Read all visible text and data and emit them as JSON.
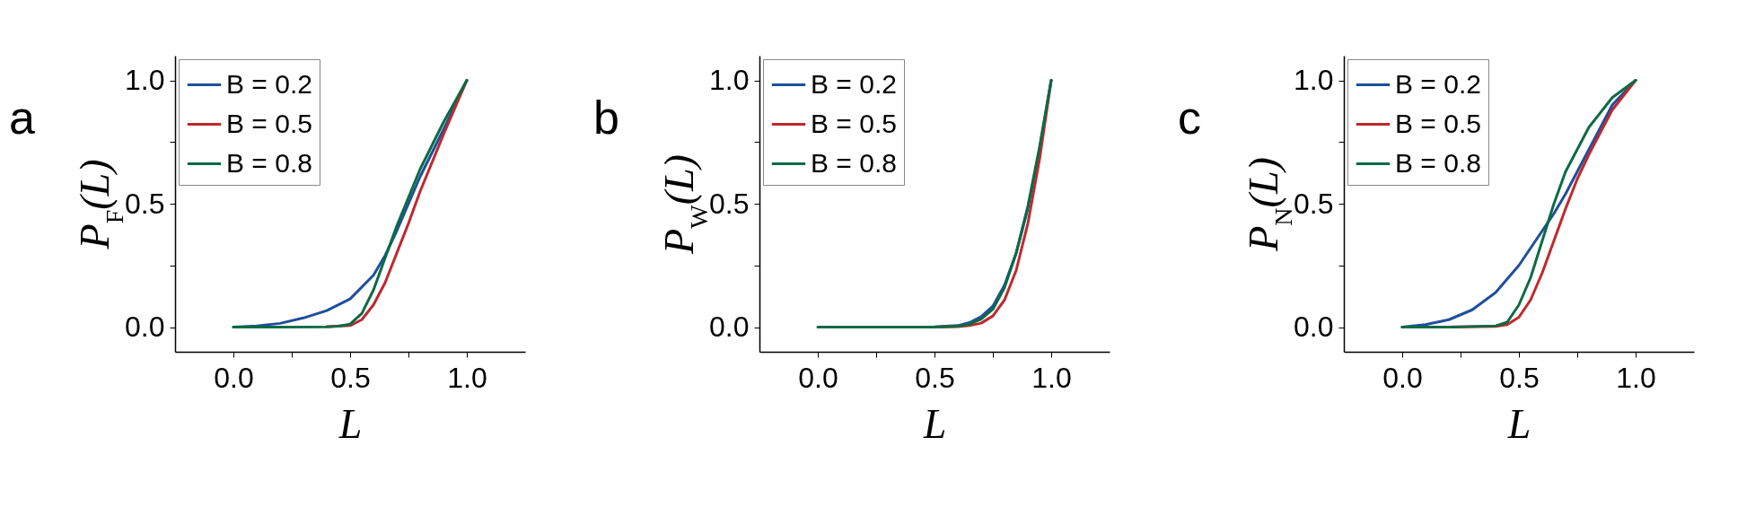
{
  "chart_data": [
    {
      "type": "line",
      "title": "a",
      "xlabel": "L",
      "ylabel": "P$_{F}$(L)",
      "legend": "top left",
      "xlim": [
        -0.25,
        1.25
      ],
      "ylim": [
        -0.1,
        1.1
      ],
      "xticks": [
        {
          "value": 0,
          "label": "0.0"
        },
        {
          "value": 0.25,
          "label": null
        },
        {
          "value": 0.5,
          "label": "0.5"
        },
        {
          "value": 0.75,
          "label": null
        },
        {
          "value": 1,
          "label": "1.0"
        }
      ],
      "yticks": [
        {
          "value": 0,
          "label": "0.0"
        },
        {
          "value": 0.25,
          "label": null
        },
        {
          "value": 0.5,
          "label": "0.5"
        },
        {
          "value": 0.75,
          "label": null
        },
        {
          "value": 1,
          "label": "1.0"
        }
      ],
      "series": [
        {
          "name": "B = 0.2",
          "color": "#1f4e9c",
          "x": [
            0,
            0.1,
            0.2,
            0.3,
            0.4,
            0.5,
            0.6,
            0.65,
            0.7,
            0.8,
            0.9,
            1
          ],
          "values": [
            0,
            0.005,
            0.015,
            0.037,
            0.067,
            0.114,
            0.21,
            0.29,
            0.39,
            0.61,
            0.8,
            1
          ]
        },
        {
          "name": "B = 0.5",
          "color": "#c0282d",
          "x": [
            0.4,
            0.5,
            0.55,
            0.6,
            0.65,
            0.7,
            0.75,
            0.8,
            0.9,
            1
          ],
          "values": [
            0.002,
            0.006,
            0.03,
            0.09,
            0.18,
            0.3,
            0.42,
            0.55,
            0.78,
            1
          ]
        },
        {
          "name": "B = 0.8",
          "color": "#0b6b45",
          "x": [
            0,
            0.2,
            0.4,
            0.45,
            0.5,
            0.55,
            0.6,
            0.65,
            0.7,
            0.8,
            0.9,
            1
          ],
          "values": [
            0,
            0,
            0.001,
            0.004,
            0.012,
            0.055,
            0.15,
            0.28,
            0.41,
            0.64,
            0.83,
            1
          ]
        }
      ]
    },
    {
      "type": "line",
      "title": "b",
      "xlabel": "L",
      "ylabel": "P$_{W}$(L)",
      "legend": "top left",
      "xlim": [
        -0.25,
        1.25
      ],
      "ylim": [
        -0.1,
        1.1
      ],
      "xticks": [
        {
          "value": 0,
          "label": "0.0"
        },
        {
          "value": 0.25,
          "label": null
        },
        {
          "value": 0.5,
          "label": "0.5"
        },
        {
          "value": 0.75,
          "label": null
        },
        {
          "value": 1,
          "label": "1.0"
        }
      ],
      "yticks": [
        {
          "value": 0,
          "label": "0.0"
        },
        {
          "value": 0.25,
          "label": null
        },
        {
          "value": 0.5,
          "label": "0.5"
        },
        {
          "value": 0.75,
          "label": null
        },
        {
          "value": 1,
          "label": "1.0"
        }
      ],
      "series": [
        {
          "name": "B = 0.2",
          "color": "#1f4e9c",
          "x": [
            0.5,
            0.6,
            0.65,
            0.7,
            0.75,
            0.8,
            0.85,
            0.9,
            0.95,
            1
          ],
          "values": [
            0.001,
            0.006,
            0.018,
            0.042,
            0.085,
            0.17,
            0.3,
            0.48,
            0.72,
            1
          ]
        },
        {
          "name": "B = 0.5",
          "color": "#c0282d",
          "x": [
            0.5,
            0.6,
            0.65,
            0.7,
            0.75,
            0.8,
            0.85,
            0.9,
            0.95,
            1
          ],
          "values": [
            0,
            0.002,
            0.006,
            0.016,
            0.045,
            0.11,
            0.23,
            0.42,
            0.68,
            1
          ]
        },
        {
          "name": "B = 0.8",
          "color": "#0b6b45",
          "x": [
            0,
            0.3,
            0.5,
            0.6,
            0.65,
            0.7,
            0.75,
            0.8,
            0.85,
            0.9,
            0.95,
            1
          ],
          "values": [
            0,
            0,
            0,
            0.004,
            0.012,
            0.032,
            0.072,
            0.16,
            0.3,
            0.49,
            0.73,
            1
          ]
        }
      ]
    },
    {
      "type": "line",
      "title": "c",
      "xlabel": "L",
      "ylabel": "P$_{N}$(L)",
      "legend": "top left",
      "xlim": [
        -0.25,
        1.25
      ],
      "ylim": [
        -0.1,
        1.1
      ],
      "xticks": [
        {
          "value": 0,
          "label": "0.0"
        },
        {
          "value": 0.25,
          "label": null
        },
        {
          "value": 0.5,
          "label": "0.5"
        },
        {
          "value": 0.75,
          "label": null
        },
        {
          "value": 1,
          "label": "1.0"
        }
      ],
      "yticks": [
        {
          "value": 0,
          "label": "0.0"
        },
        {
          "value": 0.25,
          "label": null
        },
        {
          "value": 0.5,
          "label": "0.5"
        },
        {
          "value": 0.75,
          "label": null
        },
        {
          "value": 1,
          "label": "1.0"
        }
      ],
      "series": [
        {
          "name": "B = 0.2",
          "color": "#1f4e9c",
          "x": [
            0,
            0.1,
            0.2,
            0.3,
            0.4,
            0.5,
            0.6,
            0.65,
            0.7,
            0.8,
            0.9,
            1
          ],
          "values": [
            0,
            0.01,
            0.03,
            0.07,
            0.14,
            0.25,
            0.39,
            0.46,
            0.54,
            0.72,
            0.9,
            1
          ]
        },
        {
          "name": "B = 0.5",
          "color": "#c0282d",
          "x": [
            0,
            0.2,
            0.4,
            0.45,
            0.5,
            0.55,
            0.6,
            0.65,
            0.7,
            0.75,
            0.8,
            0.9,
            1
          ],
          "values": [
            0,
            0,
            0.003,
            0.01,
            0.04,
            0.11,
            0.22,
            0.35,
            0.48,
            0.6,
            0.7,
            0.88,
            1
          ]
        },
        {
          "name": "B = 0.8",
          "color": "#0b6b45",
          "x": [
            0,
            0.2,
            0.4,
            0.45,
            0.5,
            0.55,
            0.6,
            0.65,
            0.7,
            0.8,
            0.9,
            1
          ],
          "values": [
            0,
            0,
            0.005,
            0.02,
            0.09,
            0.2,
            0.35,
            0.5,
            0.63,
            0.81,
            0.93,
            1
          ]
        }
      ]
    }
  ]
}
